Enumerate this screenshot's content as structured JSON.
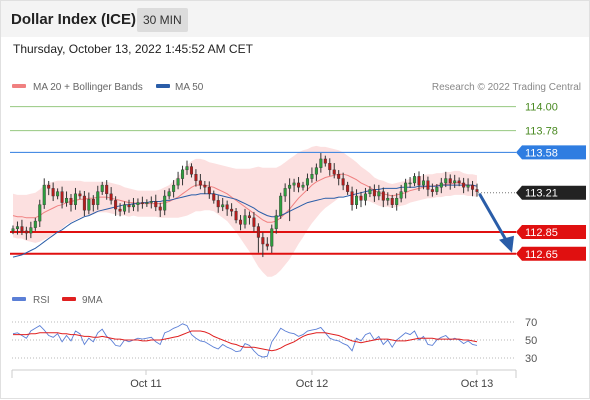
{
  "header": {
    "title": "Dollar Index (ICE)",
    "timeframe": "30 MIN",
    "timestamp": "Thursday, October 13, 2022 1:45:52 AM CET"
  },
  "legend": {
    "ma20_label": "MA 20 + Bollinger Bands",
    "ma20_color": "#f08080",
    "ma50_label": "MA 50",
    "ma50_color": "#2a5da8",
    "credit": "Research © 2022 Trading Central"
  },
  "rsi_legend": {
    "rsi_label": "RSI",
    "rsi_color": "#5b7fd6",
    "ma9_label": "9MA",
    "ma9_color": "#e02020"
  },
  "chart_data": {
    "type": "candlestick",
    "ylim": [
      112.55,
      114.05
    ],
    "x_ticks": [
      "Oct 11",
      "Oct 12",
      "Oct 13"
    ],
    "levels": [
      {
        "value": 114.0,
        "label": "114.00",
        "color": "#6ab04c",
        "style": "thin",
        "badge": false
      },
      {
        "value": 113.78,
        "label": "113.78",
        "color": "#6ab04c",
        "style": "thin",
        "badge": false
      },
      {
        "value": 113.58,
        "label": "113.58",
        "color": "#2f7de1",
        "style": "line",
        "badge": true
      },
      {
        "value": 113.21,
        "label": "113.21",
        "color": "#222222",
        "style": "dotted",
        "badge": true
      },
      {
        "value": 112.85,
        "label": "112.85",
        "color": "#e01010",
        "style": "thick",
        "badge": true
      },
      {
        "value": 112.65,
        "label": "112.65",
        "color": "#e01010",
        "style": "thick",
        "badge": true
      }
    ],
    "current_price": 113.21,
    "projection_target": 112.65,
    "closes": [
      112.88,
      112.9,
      112.86,
      112.84,
      112.89,
      112.95,
      113.1,
      113.28,
      113.25,
      113.18,
      113.22,
      113.12,
      113.16,
      113.1,
      113.2,
      113.18,
      113.05,
      113.15,
      113.1,
      113.22,
      113.28,
      113.2,
      113.14,
      113.06,
      113.04,
      113.1,
      113.08,
      113.1,
      113.12,
      113.11,
      113.12,
      113.13,
      113.08,
      113.05,
      113.18,
      113.22,
      113.28,
      113.34,
      113.42,
      113.45,
      113.38,
      113.32,
      113.28,
      113.26,
      113.2,
      113.14,
      113.08,
      113.1,
      113.06,
      113.04,
      112.96,
      112.92,
      113.0,
      112.98,
      112.9,
      112.8,
      112.74,
      112.72,
      112.88,
      113.0,
      113.18,
      113.25,
      113.28,
      113.3,
      113.26,
      113.28,
      113.34,
      113.38,
      113.44,
      113.52,
      113.48,
      113.42,
      113.38,
      113.34,
      113.28,
      113.22,
      113.1,
      113.18,
      113.14,
      113.2,
      113.24,
      113.18,
      113.22,
      113.14,
      113.16,
      113.1,
      113.16,
      113.22,
      113.3,
      113.3,
      113.36,
      113.28,
      113.32,
      113.24,
      113.22,
      113.26,
      113.3,
      113.34,
      113.3,
      113.32,
      113.3,
      113.26,
      113.28,
      113.24,
      113.22
    ],
    "spikes": {
      "55": 112.66,
      "56": 112.62,
      "62": 112.95
    },
    "ma20": [
      113.0,
      112.99,
      112.99,
      112.98,
      112.98,
      112.98,
      113.0,
      113.03,
      113.05,
      113.07,
      113.09,
      113.1,
      113.12,
      113.13,
      113.14,
      113.15,
      113.15,
      113.16,
      113.16,
      113.17,
      113.17,
      113.17,
      113.16,
      113.15,
      113.14,
      113.13,
      113.12,
      113.12,
      113.11,
      113.11,
      113.11,
      113.11,
      113.11,
      113.11,
      113.12,
      113.13,
      113.15,
      113.17,
      113.2,
      113.23,
      113.26,
      113.28,
      113.28,
      113.28,
      113.27,
      113.26,
      113.24,
      113.22,
      113.2,
      113.17,
      113.14,
      113.11,
      113.08,
      113.05,
      113.02,
      112.99,
      112.96,
      112.94,
      112.94,
      112.95,
      112.98,
      113.02,
      113.06,
      113.11,
      113.16,
      113.2,
      113.24,
      113.28,
      113.31,
      113.33,
      113.35,
      113.36,
      113.37,
      113.38,
      113.38,
      113.37,
      113.35,
      113.33,
      113.3,
      113.28,
      113.26,
      113.23,
      113.21,
      113.2,
      113.19,
      113.18,
      113.19,
      113.2,
      113.21,
      113.23,
      113.24,
      113.25,
      113.26,
      113.27,
      113.27,
      113.28,
      113.28,
      113.29,
      113.29,
      113.3,
      113.3,
      113.29,
      113.28,
      113.28,
      113.27
    ],
    "bb_width": [
      0.2,
      0.2,
      0.2,
      0.21,
      0.22,
      0.23,
      0.24,
      0.25,
      0.25,
      0.24,
      0.23,
      0.22,
      0.2,
      0.19,
      0.18,
      0.17,
      0.16,
      0.15,
      0.15,
      0.14,
      0.14,
      0.14,
      0.14,
      0.14,
      0.14,
      0.13,
      0.13,
      0.12,
      0.12,
      0.12,
      0.12,
      0.12,
      0.12,
      0.13,
      0.14,
      0.15,
      0.17,
      0.19,
      0.21,
      0.23,
      0.24,
      0.24,
      0.24,
      0.23,
      0.22,
      0.22,
      0.23,
      0.24,
      0.25,
      0.27,
      0.29,
      0.32,
      0.35,
      0.38,
      0.42,
      0.46,
      0.48,
      0.5,
      0.5,
      0.49,
      0.48,
      0.47,
      0.46,
      0.44,
      0.42,
      0.4,
      0.37,
      0.35,
      0.33,
      0.3,
      0.28,
      0.26,
      0.24,
      0.22,
      0.2,
      0.18,
      0.17,
      0.16,
      0.15,
      0.14,
      0.13,
      0.12,
      0.12,
      0.12,
      0.11,
      0.11,
      0.11,
      0.11,
      0.11,
      0.11,
      0.11,
      0.11,
      0.11,
      0.11,
      0.11,
      0.11,
      0.11,
      0.11,
      0.11,
      0.11,
      0.11,
      0.1,
      0.1,
      0.1,
      0.1
    ],
    "ma50": [
      112.62,
      112.63,
      112.64,
      112.66,
      112.68,
      112.7,
      112.73,
      112.76,
      112.79,
      112.82,
      112.85,
      112.87,
      112.9,
      112.93,
      112.95,
      112.97,
      112.99,
      113.0,
      113.02,
      113.04,
      113.05,
      113.06,
      113.07,
      113.08,
      113.09,
      113.1,
      113.1,
      113.11,
      113.11,
      113.12,
      113.12,
      113.13,
      113.13,
      113.13,
      113.14,
      113.14,
      113.15,
      113.16,
      113.17,
      113.18,
      113.19,
      113.19,
      113.2,
      113.2,
      113.2,
      113.2,
      113.19,
      113.18,
      113.17,
      113.16,
      113.15,
      113.13,
      113.11,
      113.09,
      113.07,
      113.04,
      113.02,
      113.0,
      112.99,
      112.99,
      113.0,
      113.02,
      113.04,
      113.06,
      113.08,
      113.1,
      113.12,
      113.13,
      113.14,
      113.15,
      113.16,
      113.16,
      113.16,
      113.17,
      113.17,
      113.18,
      113.19,
      113.2,
      113.21,
      113.22,
      113.23,
      113.24,
      113.24,
      113.25,
      113.25,
      113.25,
      113.25,
      113.26,
      113.26,
      113.26,
      113.26,
      113.27,
      113.27,
      113.27,
      113.27,
      113.27,
      113.28,
      113.28,
      113.28,
      113.28,
      113.28,
      113.28,
      113.28,
      113.28,
      113.27
    ],
    "rsi": {
      "ticks": [
        70,
        50,
        30
      ],
      "ylim": [
        20,
        80
      ],
      "rsi": [
        57,
        58,
        55,
        52,
        60,
        63,
        66,
        61,
        55,
        53,
        57,
        48,
        55,
        49,
        60,
        57,
        45,
        52,
        48,
        58,
        62,
        54,
        50,
        44,
        43,
        50,
        48,
        50,
        52,
        51,
        52,
        53,
        48,
        45,
        58,
        60,
        63,
        65,
        68,
        66,
        56,
        52,
        49,
        48,
        45,
        42,
        40,
        45,
        42,
        40,
        37,
        38,
        46,
        44,
        38,
        33,
        31,
        32,
        48,
        55,
        63,
        60,
        58,
        57,
        54,
        56,
        60,
        61,
        62,
        64,
        58,
        52,
        50,
        49,
        46,
        44,
        38,
        52,
        49,
        56,
        58,
        50,
        54,
        45,
        50,
        42,
        50,
        54,
        58,
        56,
        60,
        50,
        54,
        45,
        44,
        50,
        53,
        55,
        50,
        52,
        50,
        46,
        49,
        45,
        44
      ],
      "ma9": [
        56,
        56,
        56,
        56,
        57,
        57,
        58,
        58,
        58,
        58,
        58,
        57,
        57,
        56,
        56,
        55,
        54,
        54,
        53,
        53,
        54,
        53,
        52,
        51,
        51,
        50,
        50,
        50,
        50,
        49,
        49,
        50,
        50,
        50,
        51,
        52,
        53,
        54,
        56,
        58,
        60,
        60,
        60,
        59,
        57,
        54,
        52,
        50,
        48,
        46,
        45,
        43,
        42,
        42,
        42,
        41,
        40,
        39,
        38,
        39,
        41,
        44,
        46,
        48,
        51,
        54,
        56,
        57,
        58,
        58,
        58,
        57,
        56,
        55,
        53,
        51,
        49,
        48,
        47,
        48,
        49,
        50,
        51,
        51,
        51,
        50,
        49,
        49,
        49,
        50,
        51,
        52,
        52,
        52,
        52,
        51,
        51,
        51,
        51,
        51,
        51,
        50,
        50,
        49,
        48
      ]
    }
  }
}
